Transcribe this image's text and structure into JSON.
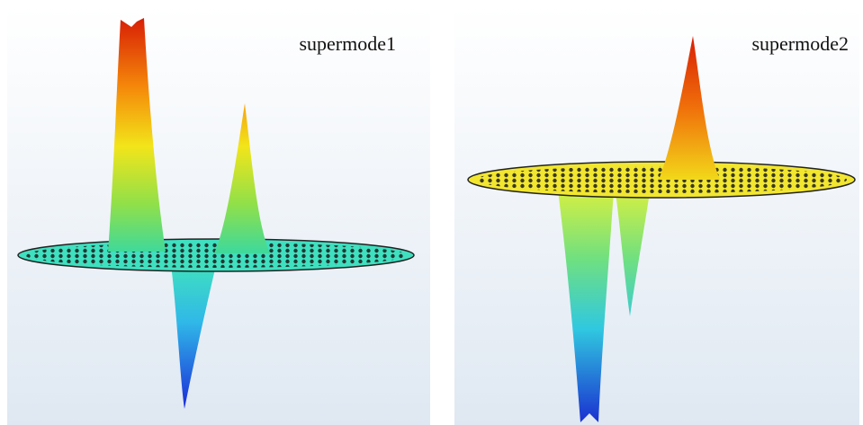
{
  "panels": [
    {
      "label": "supermode1"
    },
    {
      "label": "supermode2"
    }
  ]
}
